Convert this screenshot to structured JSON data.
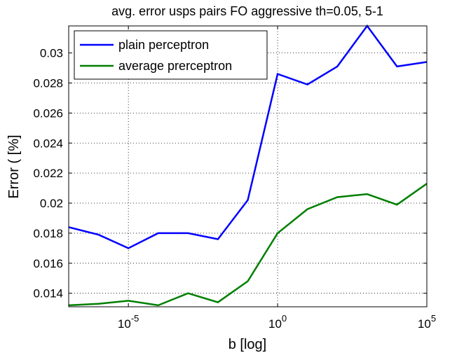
{
  "chart_data": {
    "type": "line",
    "title": "avg. error usps pairs FO aggressive th=0.05, 5-1",
    "xlabel": "b [log]",
    "ylabel": "Error ( [%]",
    "xscale": "log",
    "xlim": [
      1e-07,
      100000
    ],
    "ylim": [
      0.0131,
      0.0318
    ],
    "xticks": [
      {
        "value": 1e-05,
        "base": "10",
        "exp": "-5"
      },
      {
        "value": 1,
        "base": "10",
        "exp": "0"
      },
      {
        "value": 100000,
        "base": "10",
        "exp": "5"
      }
    ],
    "yticks": [
      "0.014",
      "0.016",
      "0.018",
      "0.02",
      "0.022",
      "0.024",
      "0.026",
      "0.028",
      "0.03"
    ],
    "grid": true,
    "legend_position": "top-left",
    "series": [
      {
        "name": "plain perceptron",
        "color": "#0000ff",
        "x": [
          1e-07,
          1e-06,
          1e-05,
          0.0001,
          0.001,
          0.01,
          0.1,
          1,
          10,
          100,
          1000,
          10000,
          100000
        ],
        "y": [
          0.0184,
          0.0179,
          0.017,
          0.018,
          0.018,
          0.0176,
          0.0202,
          0.0286,
          0.0279,
          0.0291,
          0.0318,
          0.0291,
          0.0294
        ]
      },
      {
        "name": "average prerceptron",
        "color": "#007f00",
        "x": [
          1e-07,
          1e-06,
          1e-05,
          0.0001,
          0.001,
          0.01,
          0.1,
          1,
          10,
          100,
          1000,
          10000,
          100000
        ],
        "y": [
          0.0132,
          0.0133,
          0.0135,
          0.0132,
          0.014,
          0.0134,
          0.0148,
          0.018,
          0.0196,
          0.0204,
          0.0206,
          0.0199,
          0.0213
        ]
      }
    ]
  }
}
